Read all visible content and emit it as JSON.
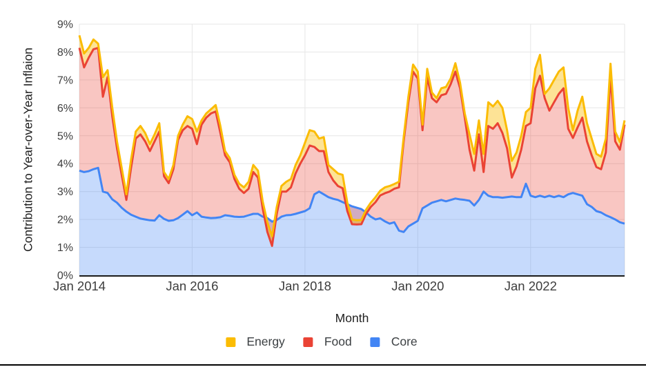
{
  "chart": {
    "y_axis_title": "Contribution to Year-over-Year Inflaion",
    "x_axis_title": "Month",
    "y_tick_labels": [
      "0%",
      "1%",
      "2%",
      "3%",
      "4%",
      "5%",
      "6%",
      "7%",
      "8%",
      "9%"
    ],
    "x_tick_labels": [
      "Jan 2014",
      "Jan 2016",
      "Jan 2018",
      "Jan 2020",
      "Jan 2022"
    ],
    "legend": [
      {
        "label": "Energy",
        "color": "#fbbc04"
      },
      {
        "label": "Food",
        "color": "#ea4335"
      },
      {
        "label": "Core",
        "color": "#4285f4"
      }
    ],
    "colors": {
      "energy_line": "#fbbc04",
      "food_line": "#ea4335",
      "core_line": "#4285f4",
      "grid": "#e6e6e6",
      "axis": "#1a1a1a",
      "tick_text": "#3d3d3d"
    }
  },
  "chart_data": {
    "type": "area",
    "stacked": true,
    "title": "",
    "xlabel": "Month",
    "ylabel": "Contribution to Year-over-Year Inflaion",
    "x_start": "Jan 2014",
    "x_frequency": "monthly",
    "x_tick_labels": [
      "Jan 2014",
      "Jan 2016",
      "Jan 2018",
      "Jan 2020",
      "Jan 2022"
    ],
    "x_tick_indices": [
      0,
      24,
      48,
      72,
      96
    ],
    "ylim": [
      0,
      9
    ],
    "y_tick_format": "percent",
    "grid": true,
    "legend_position": "bottom",
    "series": [
      {
        "name": "Energy",
        "color": "#fbbc04",
        "values": [
          0.45,
          0.5,
          0.35,
          0.35,
          0.15,
          0.7,
          0.25,
          0.3,
          0.25,
          0.25,
          0.2,
          0.3,
          0.25,
          0.3,
          0.3,
          0.25,
          0.25,
          0.3,
          0.15,
          0.15,
          0.15,
          0.15,
          0.2,
          0.35,
          0.35,
          0.45,
          0.15,
          0.15,
          0.15,
          0.23,
          0.25,
          0.15,
          0.15,
          0.15,
          0.18,
          0.2,
          0.25,
          0.25,
          0.25,
          0.25,
          0.35,
          0.35,
          0.25,
          0.2,
          0.35,
          0.3,
          0.3,
          0.3,
          0.45,
          0.55,
          0.55,
          0.45,
          0.5,
          0.25,
          0.4,
          0.45,
          0.48,
          0.3,
          0.17,
          0.15,
          0.15,
          0.15,
          0.15,
          0.18,
          0.17,
          0.21,
          0.2,
          0.17,
          0.2,
          0.15,
          0.2,
          0.25,
          0.25,
          0.2,
          0.3,
          0.2,
          0.15,
          0.25,
          0.25,
          0.2,
          0.3,
          0.2,
          0.15,
          0.55,
          0.6,
          0.5,
          0.65,
          0.85,
          0.8,
          0.8,
          0.9,
          0.65,
          0.6,
          0.5,
          0.5,
          0.5,
          0.55,
          0.7,
          0.75,
          0.15,
          0.8,
          0.8,
          0.8,
          0.75,
          0.75,
          0.28,
          0.6,
          0.75,
          0.65,
          0.6,
          0.47,
          0.45,
          0.5,
          0.45,
          0.35,
          0.28,
          0.15
        ]
      },
      {
        "name": "Food",
        "color": "#ea4335",
        "values": [
          4.4,
          3.75,
          4.07,
          4.3,
          4.3,
          3.4,
          4.15,
          2.98,
          1.95,
          1.18,
          0.42,
          1.68,
          2.8,
          3.02,
          2.8,
          2.48,
          2.84,
          3.0,
          1.53,
          1.35,
          1.83,
          2.8,
          3.03,
          3.05,
          3.1,
          2.45,
          3.3,
          3.58,
          3.75,
          3.81,
          3.02,
          2.15,
          1.92,
          1.35,
          1.01,
          0.85,
          0.95,
          1.5,
          1.3,
          0.3,
          -0.5,
          -0.87,
          0.22,
          0.9,
          0.85,
          0.99,
          1.45,
          1.75,
          2.0,
          2.25,
          1.7,
          1.45,
          1.55,
          0.9,
          0.66,
          0.5,
          0.5,
          -0.25,
          -0.64,
          -0.6,
          -0.54,
          -0.05,
          0.35,
          0.62,
          0.82,
          1.01,
          1.15,
          1.2,
          1.55,
          3.25,
          4.45,
          5.45,
          5.1,
          2.8,
          4.6,
          3.75,
          3.55,
          3.75,
          3.85,
          4.15,
          4.55,
          3.98,
          2.95,
          1.83,
          1.25,
          2.35,
          0.7,
          2.5,
          2.45,
          2.65,
          2.32,
          1.75,
          0.68,
          1.1,
          1.7,
          2.07,
          2.6,
          3.9,
          4.3,
          3.55,
          3.05,
          3.4,
          3.65,
          3.9,
          2.35,
          1.97,
          2.4,
          2.8,
          2.25,
          1.85,
          1.58,
          1.55,
          2.25,
          5.05,
          2.8,
          2.6,
          3.55
        ]
      },
      {
        "name": "Core",
        "color": "#4285f4",
        "values": [
          3.75,
          3.7,
          3.73,
          3.8,
          3.85,
          3.0,
          2.95,
          2.72,
          2.6,
          2.42,
          2.28,
          2.17,
          2.1,
          2.03,
          2.0,
          1.97,
          1.96,
          2.15,
          2.02,
          1.95,
          1.97,
          2.05,
          2.17,
          2.3,
          2.15,
          2.25,
          2.1,
          2.07,
          2.05,
          2.06,
          2.08,
          2.15,
          2.13,
          2.1,
          2.09,
          2.1,
          2.15,
          2.2,
          2.2,
          2.1,
          2.05,
          1.92,
          1.98,
          2.1,
          2.15,
          2.16,
          2.2,
          2.25,
          2.3,
          2.4,
          2.9,
          3.0,
          2.9,
          2.8,
          2.74,
          2.7,
          2.62,
          2.55,
          2.47,
          2.42,
          2.37,
          2.25,
          2.1,
          2.0,
          2.04,
          1.93,
          1.85,
          1.9,
          1.6,
          1.55,
          1.75,
          1.85,
          1.95,
          2.4,
          2.5,
          2.6,
          2.65,
          2.7,
          2.65,
          2.7,
          2.75,
          2.72,
          2.7,
          2.67,
          2.5,
          2.7,
          3.0,
          2.85,
          2.8,
          2.8,
          2.78,
          2.8,
          2.82,
          2.8,
          2.8,
          3.28,
          2.85,
          2.8,
          2.85,
          2.8,
          2.85,
          2.8,
          2.85,
          2.8,
          2.9,
          2.95,
          2.9,
          2.85,
          2.55,
          2.45,
          2.3,
          2.25,
          2.15,
          2.08,
          2.0,
          1.9,
          1.85
        ]
      }
    ]
  }
}
